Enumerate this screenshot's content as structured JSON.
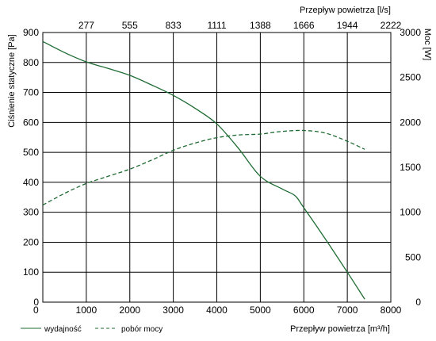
{
  "chart_data": {
    "type": "line",
    "x_axis": {
      "label": "Przepływ powietrza [m³/h]",
      "min": 0,
      "max": 8000,
      "ticks": [
        0,
        1000,
        2000,
        3000,
        4000,
        5000,
        6000,
        7000,
        8000
      ]
    },
    "x_axis_top": {
      "label": "Przepływ powietrza [l/s]",
      "tick_labels": [
        "277",
        "555",
        "833",
        "1111",
        "1388",
        "1666",
        "1944",
        "2222"
      ],
      "tick_positions_m3h": [
        1000,
        2000,
        3000,
        4000,
        5000,
        6000,
        7000,
        8000
      ]
    },
    "y_axis_left": {
      "label": "Ciśnienie statyczne [Pa]",
      "min": 0,
      "max": 900,
      "ticks": [
        0,
        100,
        200,
        300,
        400,
        500,
        600,
        700,
        800,
        900
      ]
    },
    "y_axis_right": {
      "label": "Moc [W]",
      "min": 0,
      "max": 3000,
      "ticks": [
        0,
        500,
        1000,
        1500,
        2000,
        2500,
        3000
      ]
    },
    "grid": true,
    "series": [
      {
        "name": "wydajność",
        "axis": "left",
        "style": "solid",
        "color": "#1f6b33",
        "x": [
          0,
          500,
          1000,
          1500,
          2000,
          2500,
          3000,
          3500,
          4000,
          4500,
          5000,
          5500,
          5800,
          6000,
          6500,
          7000,
          7400
        ],
        "y": [
          870,
          833,
          802,
          780,
          757,
          725,
          690,
          647,
          595,
          513,
          420,
          378,
          355,
          315,
          210,
          100,
          10
        ]
      },
      {
        "name": "pobór mocy",
        "axis": "right",
        "style": "dashed",
        "color": "#1f6b33",
        "x": [
          0,
          500,
          1000,
          1500,
          2000,
          2500,
          3000,
          3500,
          4000,
          4500,
          5000,
          5500,
          6000,
          6500,
          7000,
          7400
        ],
        "y": [
          1080,
          1210,
          1320,
          1400,
          1480,
          1580,
          1690,
          1770,
          1830,
          1860,
          1870,
          1900,
          1910,
          1880,
          1790,
          1700
        ]
      }
    ],
    "legend": {
      "placement": "bottom-left",
      "items": [
        {
          "label": "wydajność",
          "style": "solid"
        },
        {
          "label": "pobór mocy",
          "style": "dashed"
        }
      ]
    }
  }
}
